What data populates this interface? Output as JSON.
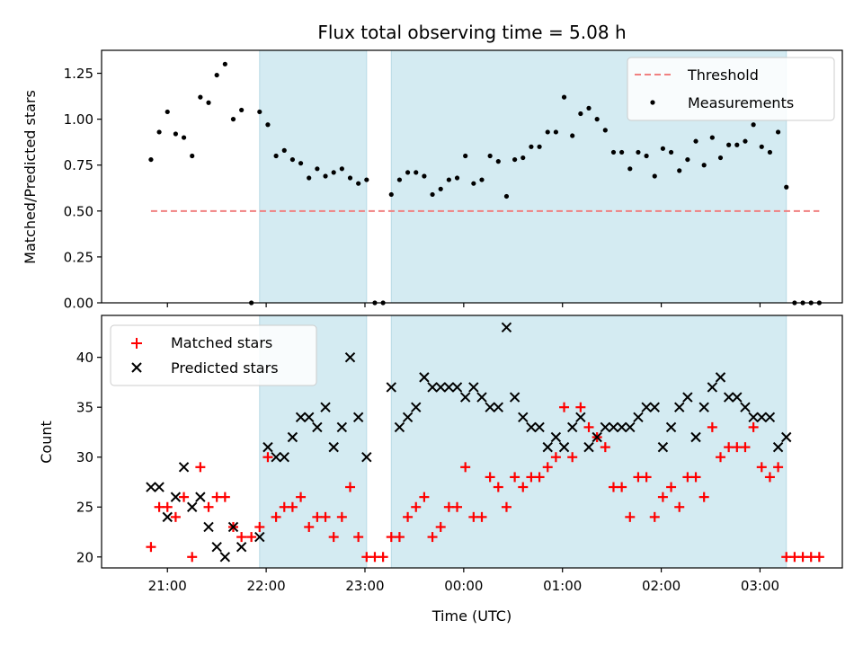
{
  "chart_data": [
    {
      "type": "scatter",
      "title": "Flux total observing time = 5.08 h",
      "xlabel": "",
      "ylabel": "Matched/Predicted stars",
      "ylim": [
        0,
        1.375
      ],
      "yticks": [
        "0.00",
        "0.25",
        "0.50",
        "0.75",
        "1.00",
        "1.25"
      ],
      "legend_placement": "top-right",
      "threshold": {
        "name": "Threshold",
        "y": 0.5,
        "x_start": "20:50",
        "x_end": "03:36",
        "color": "#f08080"
      },
      "series": [
        {
          "name": "Measurements",
          "color": "#000000",
          "x": [
            "20:50",
            "20:55",
            "21:00",
            "21:05",
            "21:10",
            "21:15",
            "21:20",
            "21:25",
            "21:30",
            "21:35",
            "21:40",
            "21:45",
            "21:51",
            "21:56",
            "22:01",
            "22:06",
            "22:11",
            "22:16",
            "22:21",
            "22:26",
            "22:31",
            "22:36",
            "22:41",
            "22:46",
            "22:51",
            "22:56",
            "23:01",
            "23:06",
            "23:11",
            "23:16",
            "23:21",
            "23:26",
            "23:31",
            "23:36",
            "23:41",
            "23:46",
            "23:51",
            "23:56",
            "00:01",
            "00:06",
            "00:11",
            "00:16",
            "00:21",
            "00:26",
            "00:31",
            "00:36",
            "00:41",
            "00:46",
            "00:51",
            "00:56",
            "01:01",
            "01:06",
            "01:11",
            "01:16",
            "01:21",
            "01:26",
            "01:31",
            "01:36",
            "01:41",
            "01:46",
            "01:51",
            "01:56",
            "02:01",
            "02:06",
            "02:11",
            "02:16",
            "02:21",
            "02:26",
            "02:31",
            "02:36",
            "02:41",
            "02:46",
            "02:51",
            "02:56",
            "03:01",
            "03:06",
            "03:11",
            "03:16",
            "03:21",
            "03:26",
            "03:31",
            "03:36"
          ],
          "y": [
            0.78,
            0.93,
            1.04,
            0.92,
            0.9,
            0.8,
            1.12,
            1.09,
            1.24,
            1.3,
            1.0,
            1.05,
            0.0,
            1.04,
            0.97,
            0.8,
            0.83,
            0.78,
            0.76,
            0.68,
            0.73,
            0.69,
            0.71,
            0.73,
            0.68,
            0.65,
            0.67,
            0.0,
            0.0,
            0.59,
            0.67,
            0.71,
            0.71,
            0.69,
            0.59,
            0.62,
            0.67,
            0.68,
            0.8,
            0.65,
            0.67,
            0.8,
            0.77,
            0.58,
            0.78,
            0.79,
            0.85,
            0.85,
            0.93,
            0.93,
            1.12,
            0.91,
            1.03,
            1.06,
            1.0,
            0.94,
            0.82,
            0.82,
            0.73,
            0.82,
            0.8,
            0.69,
            0.84,
            0.82,
            0.72,
            0.78,
            0.88,
            0.75,
            0.9,
            0.79,
            0.86,
            0.86,
            0.88,
            0.97,
            0.85,
            0.82,
            0.93,
            0.63,
            0.0,
            0.0,
            0.0,
            0.0
          ]
        }
      ],
      "shaded_regions": [
        {
          "x_start": "21:56",
          "x_end": "23:01"
        },
        {
          "x_start": "23:16",
          "x_end": "03:16"
        }
      ],
      "shade_color": "#d4ebf2"
    },
    {
      "type": "scatter",
      "title": "",
      "xlabel": "Time (UTC)",
      "ylabel": "Count",
      "ylim": [
        18.9,
        44.2
      ],
      "yticks": [
        "20",
        "25",
        "30",
        "35",
        "40"
      ],
      "xticks": [
        "21:00",
        "22:00",
        "23:00",
        "00:00",
        "01:00",
        "02:00",
        "03:00"
      ],
      "legend_placement": "top-left",
      "series": [
        {
          "name": "Matched stars",
          "color": "#ff0000",
          "marker": "+",
          "x": [
            "20:50",
            "20:55",
            "21:00",
            "21:05",
            "21:10",
            "21:15",
            "21:20",
            "21:25",
            "21:30",
            "21:35",
            "21:40",
            "21:45",
            "21:51",
            "21:56",
            "22:01",
            "22:06",
            "22:11",
            "22:16",
            "22:21",
            "22:26",
            "22:31",
            "22:36",
            "22:41",
            "22:46",
            "22:51",
            "22:56",
            "23:01",
            "23:06",
            "23:11",
            "23:16",
            "23:21",
            "23:26",
            "23:31",
            "23:36",
            "23:41",
            "23:46",
            "23:51",
            "23:56",
            "00:01",
            "00:06",
            "00:11",
            "00:16",
            "00:21",
            "00:26",
            "00:31",
            "00:36",
            "00:41",
            "00:46",
            "00:51",
            "00:56",
            "01:01",
            "01:06",
            "01:11",
            "01:16",
            "01:21",
            "01:26",
            "01:31",
            "01:36",
            "01:41",
            "01:46",
            "01:51",
            "01:56",
            "02:01",
            "02:06",
            "02:11",
            "02:16",
            "02:21",
            "02:26",
            "02:31",
            "02:36",
            "02:41",
            "02:46",
            "02:51",
            "02:56",
            "03:01",
            "03:06",
            "03:11",
            "03:16",
            "03:21",
            "03:26",
            "03:31",
            "03:36"
          ],
          "y": [
            21,
            25,
            25,
            24,
            26,
            20,
            29,
            25,
            26,
            26,
            23,
            22,
            22,
            23,
            30,
            24,
            25,
            25,
            26,
            23,
            24,
            24,
            22,
            24,
            27,
            22,
            20,
            20,
            20,
            22,
            22,
            24,
            25,
            26,
            22,
            23,
            25,
            25,
            29,
            24,
            24,
            28,
            27,
            25,
            28,
            27,
            28,
            28,
            29,
            30,
            35,
            30,
            35,
            33,
            32,
            31,
            27,
            27,
            24,
            28,
            28,
            24,
            26,
            27,
            25,
            28,
            28,
            26,
            33,
            30,
            31,
            31,
            31,
            33,
            29,
            28,
            29,
            20,
            20,
            20,
            20,
            20
          ]
        },
        {
          "name": "Predicted stars",
          "color": "#000000",
          "marker": "x",
          "x": [
            "20:50",
            "20:55",
            "21:00",
            "21:05",
            "21:10",
            "21:15",
            "21:20",
            "21:25",
            "21:30",
            "21:35",
            "21:40",
            "21:45",
            "21:56",
            "22:01",
            "22:06",
            "22:11",
            "22:16",
            "22:21",
            "22:26",
            "22:31",
            "22:36",
            "22:41",
            "22:46",
            "22:51",
            "22:56",
            "23:01",
            "23:16",
            "23:21",
            "23:26",
            "23:31",
            "23:36",
            "23:41",
            "23:46",
            "23:51",
            "23:56",
            "00:01",
            "00:06",
            "00:11",
            "00:16",
            "00:21",
            "00:26",
            "00:31",
            "00:36",
            "00:41",
            "00:46",
            "00:51",
            "00:56",
            "01:01",
            "01:06",
            "01:11",
            "01:16",
            "01:21",
            "01:26",
            "01:31",
            "01:36",
            "01:41",
            "01:46",
            "01:51",
            "01:56",
            "02:01",
            "02:06",
            "02:11",
            "02:16",
            "02:21",
            "02:26",
            "02:31",
            "02:36",
            "02:41",
            "02:46",
            "02:51",
            "02:56",
            "03:01",
            "03:06",
            "03:11",
            "03:16"
          ],
          "y": [
            27,
            27,
            24,
            26,
            29,
            25,
            26,
            23,
            21,
            20,
            23,
            21,
            22,
            31,
            30,
            30,
            32,
            34,
            34,
            33,
            35,
            31,
            33,
            40,
            34,
            30,
            37,
            33,
            34,
            35,
            38,
            37,
            37,
            37,
            37,
            36,
            37,
            36,
            35,
            35,
            43,
            36,
            34,
            33,
            33,
            31,
            32,
            31,
            33,
            34,
            31,
            32,
            33,
            33,
            33,
            33,
            34,
            35,
            35,
            31,
            33,
            35,
            36,
            32,
            35,
            37,
            38,
            36,
            36,
            35,
            34,
            34,
            34,
            31,
            32
          ]
        }
      ],
      "shaded_regions": [
        {
          "x_start": "21:56",
          "x_end": "23:01"
        },
        {
          "x_start": "23:16",
          "x_end": "03:16"
        }
      ],
      "shade_color": "#d4ebf2"
    }
  ]
}
